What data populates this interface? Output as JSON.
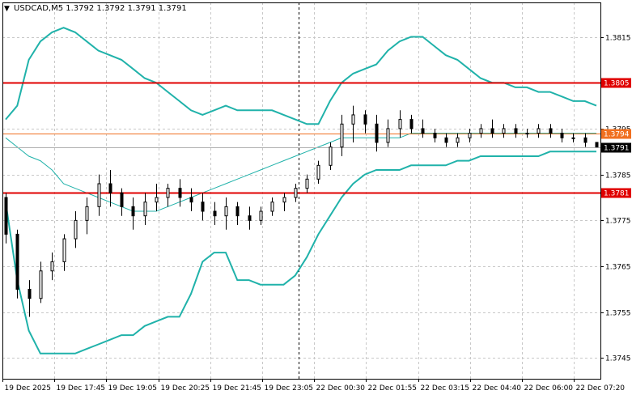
{
  "chart_data": {
    "type": "candlestick",
    "title": "USDCAD,M5  1.3792 1.3792 1.3791 1.3791",
    "symbol": "USDCAD",
    "timeframe": "M5",
    "ohlc_readout": [
      "1.3792",
      "1.3792",
      "1.3791",
      "1.3791"
    ],
    "ylim": [
      1.37405,
      1.38225
    ],
    "y_ticks": [
      "1.3815",
      "1.3805",
      "1.3795",
      "1.3785",
      "1.3775",
      "1.3765",
      "1.3755",
      "1.3745"
    ],
    "x_ticks": [
      "19 Dec 2025",
      "19 Dec 17:45",
      "19 Dec 19:05",
      "19 Dec 20:25",
      "19 Dec 21:45",
      "19 Dec 23:05",
      "22 Dec 00:30",
      "22 Dec 01:55",
      "22 Dec 03:15",
      "22 Dec 04:40",
      "22 Dec 06:00",
      "22 Dec 07:20"
    ],
    "grid": true,
    "horizontal_levels": [
      {
        "value": 1.3805,
        "label": "1.3805",
        "color": "#e00000"
      },
      {
        "value": 1.3794,
        "label": "1.3794",
        "color": "#f07020"
      },
      {
        "value": 1.3781,
        "label": "1.3781",
        "color": "#e00000"
      }
    ],
    "current_price": {
      "value": 1.3791,
      "label": "1.3791"
    },
    "crosshair_time_index": 6.0,
    "bands_color": "#20b2aa",
    "bands_upper": [
      1.3797,
      1.38,
      1.381,
      1.3814,
      1.3816,
      1.3817,
      1.3816,
      1.3814,
      1.3812,
      1.3811,
      1.381,
      1.3808,
      1.3806,
      1.3805,
      1.3803,
      1.3801,
      1.3799,
      1.3798,
      1.3799,
      1.38,
      1.3799,
      1.3799,
      1.3799,
      1.3799,
      1.3798,
      1.3797,
      1.3796,
      1.3796,
      1.3801,
      1.3805,
      1.3807,
      1.3808,
      1.3809,
      1.3812,
      1.3814,
      1.3815,
      1.3815,
      1.3813,
      1.3811,
      1.381,
      1.3808,
      1.3806,
      1.3805,
      1.3805,
      1.3804,
      1.3804,
      1.3803,
      1.3803,
      1.3802,
      1.3801,
      1.3801,
      1.38
    ],
    "bands_middle": [
      1.3793,
      1.3791,
      1.3789,
      1.3788,
      1.3786,
      1.3783,
      1.3782,
      1.3781,
      1.378,
      1.3779,
      1.3778,
      1.3777,
      1.3777,
      1.3777,
      1.3778,
      1.3779,
      1.378,
      1.3781,
      1.3782,
      1.3783,
      1.3784,
      1.3785,
      1.3786,
      1.3787,
      1.3788,
      1.3789,
      1.379,
      1.3791,
      1.3792,
      1.3793,
      1.3793,
      1.3793,
      1.3793,
      1.3793,
      1.3793,
      1.3794,
      1.3794,
      1.3794,
      1.3794,
      1.3794,
      1.3794,
      1.3794,
      1.3794,
      1.3794,
      1.3794,
      1.3794,
      1.3794,
      1.3794,
      1.3794,
      1.3794,
      1.3794,
      1.3794
    ],
    "bands_lower": [
      1.3779,
      1.3762,
      1.3751,
      1.3746,
      1.3746,
      1.3746,
      1.3746,
      1.3747,
      1.3748,
      1.3749,
      1.375,
      1.375,
      1.3752,
      1.3753,
      1.3754,
      1.3754,
      1.3759,
      1.3766,
      1.3768,
      1.3768,
      1.3762,
      1.3762,
      1.3761,
      1.3761,
      1.3761,
      1.3763,
      1.3767,
      1.3772,
      1.3776,
      1.378,
      1.3783,
      1.3785,
      1.3786,
      1.3786,
      1.3786,
      1.3787,
      1.3787,
      1.3787,
      1.3787,
      1.3788,
      1.3788,
      1.3789,
      1.3789,
      1.3789,
      1.3789,
      1.3789,
      1.3789,
      1.379,
      1.379,
      1.379,
      1.379,
      1.379
    ],
    "candles": [
      [
        1.378,
        1.3781,
        1.377,
        1.3772
      ],
      [
        1.3772,
        1.3773,
        1.3758,
        1.376
      ],
      [
        1.376,
        1.3762,
        1.3754,
        1.3758
      ],
      [
        1.3758,
        1.3766,
        1.3757,
        1.3764
      ],
      [
        1.3764,
        1.3768,
        1.3762,
        1.3766
      ],
      [
        1.3766,
        1.3772,
        1.3764,
        1.3771
      ],
      [
        1.3771,
        1.3777,
        1.3769,
        1.3775
      ],
      [
        1.3775,
        1.378,
        1.3772,
        1.3778
      ],
      [
        1.3778,
        1.3785,
        1.3776,
        1.3783
      ],
      [
        1.3783,
        1.3786,
        1.3778,
        1.3781
      ],
      [
        1.3781,
        1.3782,
        1.3776,
        1.3778
      ],
      [
        1.3778,
        1.378,
        1.3773,
        1.3776
      ],
      [
        1.3776,
        1.3781,
        1.3774,
        1.3779
      ],
      [
        1.3779,
        1.3783,
        1.3777,
        1.378
      ],
      [
        1.378,
        1.3783,
        1.3778,
        1.3782
      ],
      [
        1.3782,
        1.3784,
        1.3778,
        1.378
      ],
      [
        1.378,
        1.3782,
        1.3777,
        1.3779
      ],
      [
        1.3779,
        1.3781,
        1.3775,
        1.3777
      ],
      [
        1.3777,
        1.3779,
        1.3774,
        1.3776
      ],
      [
        1.3776,
        1.378,
        1.3773,
        1.3778
      ],
      [
        1.3778,
        1.3779,
        1.3774,
        1.3776
      ],
      [
        1.3776,
        1.3778,
        1.3773,
        1.3775
      ],
      [
        1.3775,
        1.3778,
        1.3774,
        1.3777
      ],
      [
        1.3777,
        1.378,
        1.3776,
        1.3779
      ],
      [
        1.3779,
        1.3781,
        1.3777,
        1.378
      ],
      [
        1.378,
        1.3783,
        1.3779,
        1.3782
      ],
      [
        1.3782,
        1.3785,
        1.3781,
        1.3784
      ],
      [
        1.3784,
        1.3788,
        1.3783,
        1.3787
      ],
      [
        1.3787,
        1.3792,
        1.3786,
        1.3791
      ],
      [
        1.3791,
        1.3798,
        1.3789,
        1.3796
      ],
      [
        1.3796,
        1.38,
        1.3792,
        1.3798
      ],
      [
        1.3798,
        1.3799,
        1.3794,
        1.3796
      ],
      [
        1.3796,
        1.3798,
        1.379,
        1.3792
      ],
      [
        1.3792,
        1.3797,
        1.3791,
        1.3795
      ],
      [
        1.3795,
        1.3799,
        1.3793,
        1.3797
      ],
      [
        1.3797,
        1.3798,
        1.3794,
        1.3795
      ],
      [
        1.3795,
        1.3797,
        1.3793,
        1.3794
      ],
      [
        1.3794,
        1.3795,
        1.3792,
        1.3793
      ],
      [
        1.3793,
        1.3794,
        1.3791,
        1.3792
      ],
      [
        1.3792,
        1.3794,
        1.3791,
        1.3793
      ],
      [
        1.3793,
        1.3795,
        1.3792,
        1.3794
      ],
      [
        1.3794,
        1.3796,
        1.3793,
        1.3795
      ],
      [
        1.3795,
        1.3797,
        1.3793,
        1.3794
      ],
      [
        1.3794,
        1.3796,
        1.3793,
        1.3795
      ],
      [
        1.3795,
        1.3796,
        1.3793,
        1.3794
      ],
      [
        1.3794,
        1.3795,
        1.3793,
        1.3794
      ],
      [
        1.3794,
        1.3796,
        1.3793,
        1.3795
      ],
      [
        1.3795,
        1.3796,
        1.3793,
        1.3794
      ],
      [
        1.3794,
        1.3795,
        1.3792,
        1.3793
      ],
      [
        1.3793,
        1.3794,
        1.3792,
        1.3793
      ],
      [
        1.3793,
        1.3794,
        1.3791,
        1.3792
      ],
      [
        1.3792,
        1.3792,
        1.3791,
        1.3791
      ]
    ]
  }
}
